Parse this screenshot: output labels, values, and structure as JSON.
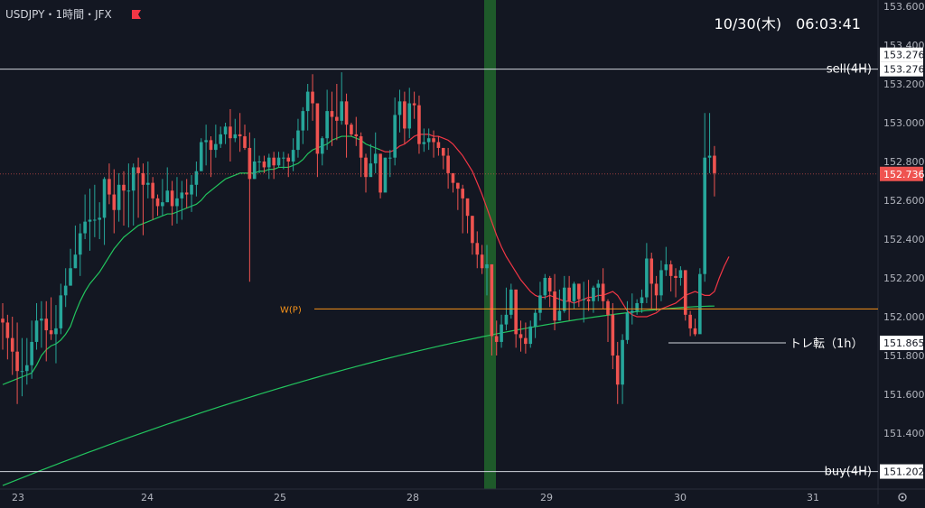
{
  "header": {
    "symbol": "USDJPY・1時間・JFX",
    "datetime": "10/30(木)　06:03:41"
  },
  "colors": {
    "background": "#131722",
    "up": "#26a69a",
    "down": "#ef5350",
    "ma_short": "#f23645",
    "ma_mid": "#22c55e",
    "ma_long": "#22c55e",
    "pivot": "#f7931a",
    "hline": "#d1d4dc",
    "highlight": "#1e5a2a"
  },
  "chart_data": {
    "type": "candlestick",
    "y_ticks": [
      "153.600",
      "153.400",
      "153.200",
      "153.000",
      "152.800",
      "152.600",
      "152.400",
      "152.200",
      "152.000",
      "151.800",
      "151.600",
      "151.400"
    ],
    "x_ticks": [
      "23",
      "24",
      "25",
      "28",
      "29",
      "30",
      "31"
    ],
    "ylim": [
      151.17,
      153.64
    ],
    "grid": false,
    "current_price": "152.736",
    "lines": [
      {
        "label": "sell(4H)",
        "value": 153.276,
        "price_label": "153.276",
        "style": "solid"
      },
      {
        "label": "buy(4H)",
        "value": 151.202,
        "price_label": "151.202",
        "style": "solid"
      },
      {
        "label": "W(P)",
        "value": 152.04,
        "style": "pivot"
      },
      {
        "label": "トレ転（1h）",
        "value": 151.865,
        "price_label": "151.865",
        "style": "short"
      }
    ],
    "candles": [
      [
        151.99,
        151.97,
        152.07,
        151.83
      ],
      [
        151.97,
        151.89,
        152.01,
        151.78
      ],
      [
        151.89,
        151.82,
        152.0,
        151.7
      ],
      [
        151.82,
        151.72,
        151.97,
        151.55
      ],
      [
        151.72,
        151.72,
        151.89,
        151.59
      ],
      [
        151.72,
        151.75,
        151.89,
        151.65
      ],
      [
        151.75,
        151.87,
        151.98,
        151.68
      ],
      [
        151.87,
        151.98,
        152.07,
        151.83
      ],
      [
        151.98,
        151.99,
        152.08,
        151.84
      ],
      [
        151.99,
        151.93,
        152.08,
        151.77
      ],
      [
        151.93,
        151.91,
        152.1,
        151.88
      ],
      [
        151.91,
        151.94,
        152.06,
        151.76
      ],
      [
        151.94,
        152.11,
        152.17,
        151.91
      ],
      [
        152.11,
        152.16,
        152.25,
        152.05
      ],
      [
        152.16,
        152.25,
        152.35,
        152.16
      ],
      [
        152.25,
        152.32,
        152.47,
        152.25
      ],
      [
        152.32,
        152.43,
        152.48,
        152.21
      ],
      [
        152.43,
        152.49,
        152.63,
        152.4
      ],
      [
        152.49,
        152.5,
        152.66,
        152.34
      ],
      [
        152.5,
        152.5,
        152.68,
        152.41
      ],
      [
        152.5,
        152.51,
        152.59,
        152.4
      ],
      [
        152.51,
        152.71,
        152.72,
        152.37
      ],
      [
        152.71,
        152.63,
        152.79,
        152.58
      ],
      [
        152.63,
        152.55,
        152.76,
        152.43
      ],
      [
        152.55,
        152.68,
        152.74,
        152.49
      ],
      [
        152.68,
        152.65,
        152.75,
        152.47
      ],
      [
        152.65,
        152.65,
        152.79,
        152.46
      ],
      [
        152.65,
        152.77,
        152.79,
        152.47
      ],
      [
        152.77,
        152.74,
        152.82,
        152.51
      ],
      [
        152.74,
        152.68,
        152.79,
        152.42
      ],
      [
        152.68,
        152.69,
        152.8,
        152.61
      ],
      [
        152.69,
        152.61,
        152.72,
        152.5
      ],
      [
        152.61,
        152.57,
        152.63,
        152.52
      ],
      [
        152.57,
        152.59,
        152.71,
        152.52
      ],
      [
        152.59,
        152.65,
        152.77,
        152.59
      ],
      [
        152.65,
        152.57,
        152.7,
        152.47
      ],
      [
        152.57,
        152.61,
        152.72,
        152.48
      ],
      [
        152.61,
        152.64,
        152.7,
        152.5
      ],
      [
        152.64,
        152.63,
        152.71,
        152.56
      ],
      [
        152.63,
        152.68,
        152.73,
        152.54
      ],
      [
        152.68,
        152.75,
        152.8,
        152.62
      ],
      [
        152.75,
        152.9,
        152.92,
        152.76
      ],
      [
        152.9,
        152.91,
        152.99,
        152.78
      ],
      [
        152.91,
        152.86,
        152.93,
        152.72
      ],
      [
        152.86,
        152.89,
        152.99,
        152.82
      ],
      [
        152.89,
        152.94,
        152.98,
        152.87
      ],
      [
        152.94,
        152.98,
        153.0,
        152.89
      ],
      [
        152.98,
        152.92,
        153.07,
        152.8
      ],
      [
        152.92,
        152.94,
        153.02,
        152.9
      ],
      [
        152.94,
        152.93,
        153.05,
        152.85
      ],
      [
        152.93,
        152.87,
        152.99,
        152.86
      ],
      [
        152.87,
        152.71,
        152.95,
        152.18
      ],
      [
        152.71,
        152.8,
        152.92,
        152.71
      ],
      [
        152.8,
        152.8,
        152.83,
        152.74
      ],
      [
        152.8,
        152.77,
        152.83,
        152.74
      ],
      [
        152.77,
        152.82,
        152.84,
        152.71
      ],
      [
        152.82,
        152.78,
        152.85,
        152.71
      ],
      [
        152.78,
        152.82,
        152.85,
        152.77
      ],
      [
        152.82,
        152.82,
        152.85,
        152.76
      ],
      [
        152.82,
        152.8,
        152.84,
        152.72
      ],
      [
        152.8,
        152.86,
        152.92,
        152.75
      ],
      [
        152.86,
        152.96,
        153.02,
        152.82
      ],
      [
        152.96,
        153.06,
        153.08,
        152.89
      ],
      [
        153.06,
        153.16,
        153.2,
        152.96
      ],
      [
        153.16,
        153.1,
        153.25,
        153.01
      ],
      [
        153.1,
        152.84,
        153.1,
        152.72
      ],
      [
        152.84,
        152.92,
        152.93,
        152.78
      ],
      [
        152.92,
        153.06,
        153.17,
        152.86
      ],
      [
        153.06,
        153.03,
        153.16,
        152.88
      ],
      [
        153.03,
        153.01,
        153.2,
        152.91
      ],
      [
        153.01,
        153.11,
        153.26,
        152.99
      ],
      [
        153.11,
        152.99,
        153.15,
        152.82
      ],
      [
        152.99,
        152.94,
        153.0,
        152.93
      ],
      [
        152.94,
        152.93,
        153.03,
        152.88
      ],
      [
        152.93,
        152.82,
        152.95,
        152.72
      ],
      [
        152.82,
        152.72,
        152.84,
        152.64
      ],
      [
        152.72,
        152.79,
        152.89,
        152.73
      ],
      [
        152.79,
        152.84,
        152.95,
        152.74
      ],
      [
        152.84,
        152.64,
        152.84,
        152.61
      ],
      [
        152.64,
        152.82,
        152.82,
        152.71
      ],
      [
        152.82,
        152.82,
        152.86,
        152.72
      ],
      [
        152.82,
        153.04,
        153.13,
        152.78
      ],
      [
        153.04,
        153.11,
        153.17,
        152.95
      ],
      [
        153.11,
        152.97,
        153.16,
        152.89
      ],
      [
        152.97,
        153.1,
        153.18,
        152.92
      ],
      [
        153.1,
        153.09,
        153.16,
        153.02
      ],
      [
        153.09,
        152.89,
        153.14,
        152.84
      ],
      [
        152.89,
        152.9,
        152.97,
        152.85
      ],
      [
        152.9,
        152.92,
        152.97,
        152.86
      ],
      [
        152.92,
        152.9,
        152.96,
        152.82
      ],
      [
        152.9,
        152.87,
        152.93,
        152.83
      ],
      [
        152.87,
        152.83,
        152.87,
        152.76
      ],
      [
        152.83,
        152.74,
        152.87,
        152.66
      ],
      [
        152.74,
        152.69,
        152.73,
        152.64
      ],
      [
        152.69,
        152.66,
        152.69,
        152.55
      ],
      [
        152.66,
        152.61,
        152.68,
        152.43
      ],
      [
        152.61,
        152.52,
        152.6,
        152.43
      ],
      [
        152.52,
        152.38,
        152.52,
        152.32
      ],
      [
        152.38,
        152.32,
        152.44,
        152.25
      ],
      [
        152.32,
        152.25,
        152.37,
        152.22
      ],
      [
        152.25,
        152.27,
        152.37,
        152.11
      ],
      [
        152.27,
        151.9,
        152.27,
        151.8
      ],
      [
        151.9,
        151.87,
        151.98,
        151.8
      ],
      [
        151.87,
        151.96,
        152.01,
        151.84
      ],
      [
        151.96,
        152.01,
        152.15,
        151.93
      ],
      [
        152.01,
        152.14,
        152.17,
        151.99
      ],
      [
        152.14,
        151.91,
        152.14,
        151.84
      ],
      [
        151.91,
        151.89,
        151.98,
        151.82
      ],
      [
        151.89,
        151.86,
        151.97,
        151.81
      ],
      [
        151.86,
        151.95,
        151.98,
        151.84
      ],
      [
        151.95,
        152.02,
        152.04,
        151.89
      ],
      [
        152.02,
        152.11,
        152.18,
        151.98
      ],
      [
        152.11,
        152.2,
        152.22,
        152.09
      ],
      [
        152.2,
        152.13,
        152.21,
        152.05
      ],
      [
        152.13,
        151.98,
        152.22,
        151.93
      ],
      [
        151.98,
        152.03,
        152.14,
        151.98
      ],
      [
        152.03,
        152.15,
        152.21,
        152.02
      ],
      [
        152.15,
        152.08,
        152.21,
        151.98
      ],
      [
        152.08,
        152.17,
        152.18,
        152.04
      ],
      [
        152.17,
        152.09,
        152.17,
        152.05
      ],
      [
        152.09,
        152.09,
        152.18,
        151.97
      ],
      [
        152.09,
        152.08,
        152.19,
        152.03
      ],
      [
        152.08,
        152.15,
        152.16,
        152.02
      ],
      [
        152.15,
        152.17,
        152.19,
        152.08
      ],
      [
        152.17,
        152.08,
        152.25,
        152.04
      ],
      [
        152.08,
        152.01,
        152.09,
        151.87
      ],
      [
        152.01,
        151.8,
        152.07,
        151.73
      ],
      [
        151.8,
        151.65,
        151.87,
        151.55
      ],
      [
        151.65,
        151.88,
        151.91,
        151.55
      ],
      [
        151.88,
        152.02,
        152.08,
        151.86
      ],
      [
        152.02,
        152.03,
        152.12,
        151.96
      ],
      [
        152.03,
        152.07,
        152.09,
        152.01
      ],
      [
        152.07,
        152.1,
        152.14,
        152.02
      ],
      [
        152.1,
        152.3,
        152.38,
        152.07
      ],
      [
        152.3,
        152.17,
        152.33,
        152.04
      ],
      [
        152.17,
        152.11,
        152.21,
        152.03
      ],
      [
        152.11,
        152.24,
        152.29,
        152.08
      ],
      [
        152.24,
        152.27,
        152.36,
        152.21
      ],
      [
        152.27,
        152.21,
        152.29,
        152.13
      ],
      [
        152.21,
        152.2,
        152.25,
        152.1
      ],
      [
        152.2,
        152.24,
        152.26,
        152.16
      ],
      [
        152.24,
        152.01,
        152.24,
        151.98
      ],
      [
        152.01,
        151.94,
        152.03,
        151.9
      ],
      [
        151.94,
        151.91,
        151.99,
        151.9
      ],
      [
        151.91,
        152.22,
        152.25,
        151.92
      ],
      [
        152.22,
        152.82,
        153.05,
        152.18
      ],
      [
        152.82,
        152.83,
        153.05,
        152.74
      ],
      [
        152.83,
        152.74,
        152.88,
        152.62
      ]
    ],
    "series": [
      {
        "name": "",
        "type": "ma",
        "values": [
          151.65,
          151.66,
          151.67,
          151.68,
          151.69,
          151.7,
          151.71,
          151.75,
          151.8,
          151.83,
          151.85,
          151.86,
          151.88,
          151.91,
          151.95,
          152.02,
          152.08,
          152.13,
          152.17,
          152.2,
          152.23,
          152.27,
          152.31,
          152.35,
          152.38,
          152.41,
          152.43,
          152.45,
          152.47,
          152.48,
          152.49,
          152.5,
          152.51,
          152.52,
          152.53,
          152.53,
          152.54,
          152.55,
          152.56,
          152.57,
          152.58,
          152.6,
          152.63,
          152.65,
          152.67,
          152.69,
          152.71,
          152.72,
          152.73,
          152.74,
          152.74,
          152.74,
          152.74,
          152.75,
          152.75,
          152.76,
          152.76,
          152.77,
          152.77,
          152.77,
          152.78,
          152.79,
          152.81,
          152.84,
          152.86,
          152.87,
          152.88,
          152.89,
          152.91,
          152.92,
          152.93,
          152.93,
          152.93,
          152.92,
          152.91,
          152.89,
          152.88,
          152.87,
          152.86,
          152.85,
          152.85,
          152.86,
          152.88,
          152.89,
          152.91,
          152.93,
          152.94,
          152.94,
          152.94,
          152.93,
          152.93,
          152.92,
          152.91,
          152.89,
          152.86,
          152.83,
          152.79,
          152.75,
          152.69,
          152.63,
          152.56,
          152.49,
          152.42,
          152.36,
          152.31,
          152.27,
          152.23,
          152.19,
          152.16,
          152.13,
          152.11,
          152.1,
          152.1,
          152.11,
          152.1,
          152.09,
          152.08,
          152.08,
          152.07,
          152.08,
          152.09,
          152.1,
          152.1,
          152.11,
          152.11,
          152.12,
          152.13,
          152.11,
          152.07,
          152.03,
          152.01,
          152.0,
          152.0,
          152.0,
          152.01,
          152.02,
          152.04,
          152.05,
          152.06,
          152.07,
          152.09,
          152.11,
          152.12,
          152.13,
          152.12,
          152.11,
          152.11,
          152.13,
          152.2,
          152.26,
          152.31
        ]
      }
    ]
  }
}
